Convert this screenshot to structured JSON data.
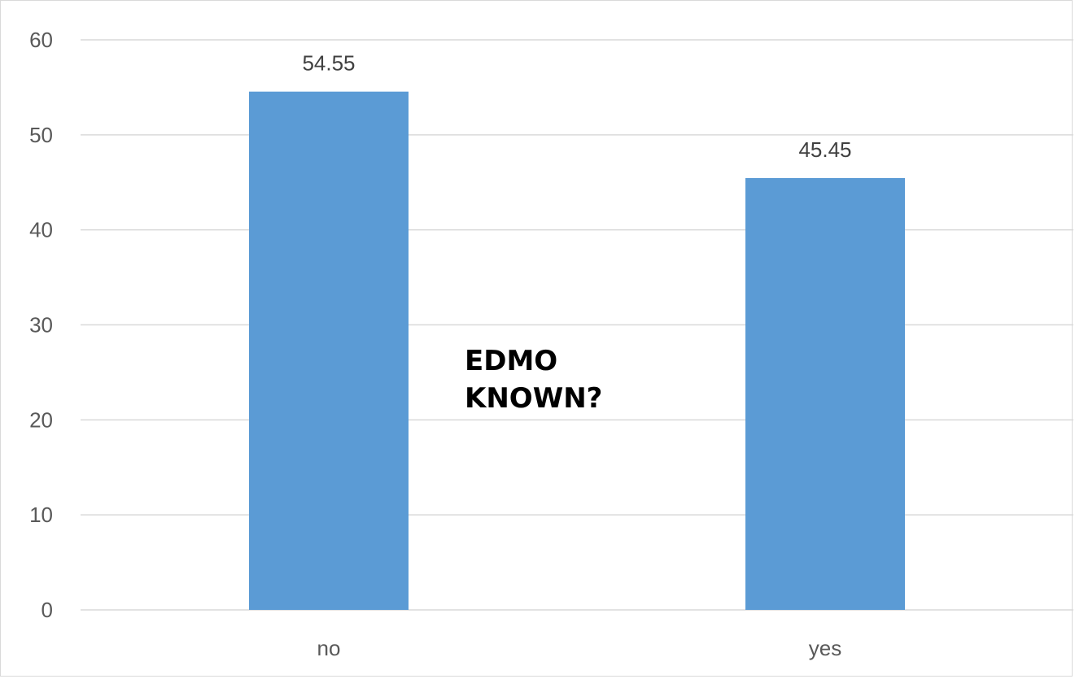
{
  "chart_data": {
    "type": "bar",
    "categories": [
      "no",
      "yes"
    ],
    "values": [
      54.55,
      45.45
    ],
    "data_labels": [
      "54.55",
      "45.45"
    ],
    "title": "",
    "xlabel": "",
    "ylabel": "",
    "ylim": [
      0,
      60
    ],
    "yticks": [
      0,
      10,
      20,
      30,
      40,
      50,
      60
    ],
    "grid": true,
    "legend": "none",
    "annotation": [
      "EDMO",
      "KNOWN?"
    ],
    "colors": {
      "bar": "#5b9bd5",
      "gridline": "#d9d9d9",
      "tick_text": "#595959",
      "label_text": "#404040",
      "annotation_text": "#000000"
    }
  }
}
